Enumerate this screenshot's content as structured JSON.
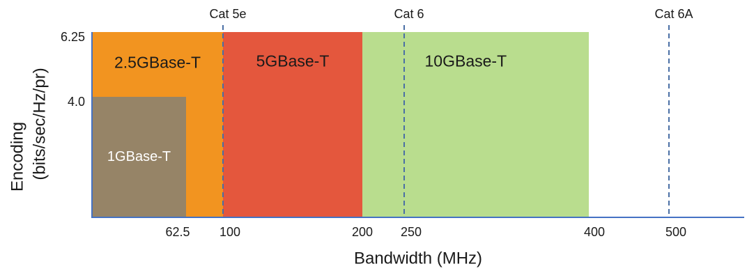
{
  "chart_data": {
    "type": "area",
    "title": "",
    "xlabel": "Bandwidth (MHz)",
    "ylabel_line1": "Encoding",
    "ylabel_line2": "(bits/sec/Hz/pr)",
    "x_ticks": [
      {
        "value": 62.5,
        "label": "62.5"
      },
      {
        "value": 100,
        "label": "100"
      },
      {
        "value": 200,
        "label": "200"
      },
      {
        "value": 250,
        "label": "250"
      },
      {
        "value": 400,
        "label": "400"
      },
      {
        "value": 500,
        "label": "500"
      }
    ],
    "y_ticks": [
      {
        "value": 4.0,
        "label": "4.0"
      },
      {
        "value": 6.25,
        "label": "6.25"
      }
    ],
    "regions": [
      {
        "name": "10GBase-T",
        "x": [
          200,
          400
        ],
        "y": [
          0,
          6.25
        ],
        "color": "#b9dd8e",
        "text_color": "#1a1a1a"
      },
      {
        "name": "5GBase-T",
        "x": [
          100,
          200
        ],
        "y": [
          0,
          6.25
        ],
        "color": "#e4573d",
        "text_color": "#1a1a1a"
      },
      {
        "name": "2.5GBase-T",
        "x": [
          0,
          100
        ],
        "y": [
          0,
          6.25
        ],
        "color": "#f29420",
        "text_color": "#1a1a1a"
      },
      {
        "name": "1GBase-T",
        "x": [
          0,
          62.5
        ],
        "y": [
          0,
          4.0
        ],
        "color": "#968467",
        "text_color": "#ffffff"
      }
    ],
    "cable_markers": [
      {
        "name": "Cat 5e",
        "x": 100
      },
      {
        "name": "Cat 6",
        "x": 250
      },
      {
        "name": "Cat 6A",
        "x": 500
      }
    ],
    "axis_color": "#4472c4",
    "marker_color": "#4a6fa5",
    "grid": false,
    "legend": "none"
  }
}
